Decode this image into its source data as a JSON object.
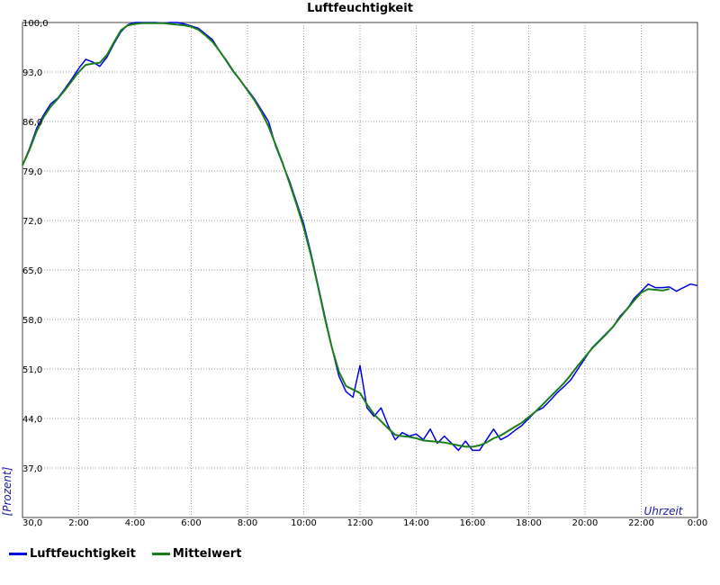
{
  "colors": {
    "series_raw": "#0000e6",
    "series_mean": "#1a7f1a",
    "grid": "#999999",
    "axis_label": "#1a1aaa"
  },
  "chart_data": {
    "type": "line",
    "title": "Luftfeuchtigkeit",
    "xlabel": "Uhrzeit",
    "ylabel": "[Prozent]",
    "xlim": [
      0,
      24
    ],
    "ylim": [
      30,
      100
    ],
    "x_ticks": [
      0,
      2,
      4,
      6,
      8,
      10,
      12,
      14,
      16,
      18,
      20,
      22,
      24
    ],
    "x_tick_labels": [
      "",
      "2:00",
      "4:00",
      "6:00",
      "8:00",
      "10:00",
      "12:00",
      "14:00",
      "16:00",
      "18:00",
      "20:00",
      "22:00",
      "0:00"
    ],
    "y_ticks": [
      30,
      37,
      44,
      51,
      58,
      65,
      72,
      79,
      86,
      93,
      100
    ],
    "y_tick_labels": [
      "30,0",
      "37,0",
      "44,0",
      "51,0",
      "58,0",
      "65,0",
      "72,0",
      "79,0",
      "86,0",
      "93,0",
      "100,0"
    ],
    "grid": true,
    "legend_position": "bottom-left",
    "series": [
      {
        "name": "Luftfeuchtigkeit",
        "x": [
          0,
          0.25,
          0.5,
          0.75,
          1,
          1.25,
          1.5,
          1.75,
          2,
          2.25,
          2.5,
          2.75,
          3,
          3.25,
          3.5,
          3.75,
          4,
          4.25,
          4.5,
          4.75,
          5,
          5.25,
          5.5,
          5.75,
          6,
          6.25,
          6.5,
          6.75,
          7,
          7.25,
          7.5,
          7.75,
          8,
          8.25,
          8.5,
          8.75,
          9,
          9.25,
          9.5,
          9.75,
          10,
          10.25,
          10.5,
          10.75,
          11,
          11.25,
          11.5,
          11.75,
          12,
          12.25,
          12.5,
          12.75,
          13,
          13.25,
          13.5,
          13.75,
          14,
          14.25,
          14.5,
          14.75,
          15,
          15.25,
          15.5,
          15.75,
          16,
          16.25,
          16.5,
          16.75,
          17,
          17.25,
          17.5,
          17.75,
          18,
          18.25,
          18.5,
          18.75,
          19,
          19.25,
          19.5,
          19.75,
          20,
          20.25,
          20.5,
          20.75,
          21,
          21.25,
          21.5,
          21.75,
          22,
          22.25,
          22.5,
          22.75,
          23,
          23.25,
          23.5,
          23.75,
          24
        ],
        "values": [
          79.8,
          82.2,
          85.0,
          86.9,
          88.5,
          89.3,
          90.6,
          92.0,
          93.5,
          94.8,
          94.4,
          93.8,
          95.1,
          97.0,
          98.7,
          99.7,
          100.0,
          100.0,
          100.0,
          100.0,
          99.9,
          100.0,
          100.0,
          99.8,
          99.5,
          99.2,
          98.4,
          97.6,
          96.0,
          94.5,
          93.0,
          91.8,
          90.5,
          89.2,
          87.6,
          86.0,
          82.5,
          80.0,
          77.5,
          74.5,
          71.5,
          67.5,
          63.0,
          58.5,
          54.0,
          50.0,
          47.8,
          47.0,
          51.5,
          45.5,
          44.3,
          45.5,
          43.0,
          41.0,
          42.0,
          41.5,
          41.8,
          41.0,
          42.5,
          40.5,
          41.5,
          40.5,
          39.5,
          40.8,
          39.5,
          39.5,
          41.0,
          42.5,
          41.0,
          41.5,
          42.3,
          43.0,
          44.0,
          45.0,
          45.5,
          46.5,
          47.6,
          48.5,
          49.5,
          51.0,
          52.5,
          54.0,
          55.0,
          56.0,
          57.0,
          58.5,
          59.5,
          61.0,
          62.0,
          63.0,
          62.5,
          62.5,
          62.6,
          62.0,
          62.5,
          63.0,
          62.8
        ],
        "color": "#0000e6"
      },
      {
        "name": "Mittelwert",
        "x": [
          0,
          0.25,
          0.5,
          0.75,
          1,
          1.25,
          1.5,
          1.75,
          2,
          2.25,
          2.5,
          2.75,
          3,
          3.25,
          3.5,
          3.75,
          4,
          4.25,
          4.5,
          4.75,
          5,
          5.25,
          5.5,
          5.75,
          6,
          6.25,
          6.5,
          6.75,
          7,
          7.25,
          7.5,
          7.75,
          8,
          8.25,
          8.5,
          8.75,
          9,
          9.25,
          9.5,
          9.75,
          10,
          10.25,
          10.5,
          10.75,
          11,
          11.25,
          11.5,
          11.75,
          12,
          12.25,
          12.5,
          12.75,
          13,
          13.25,
          13.5,
          13.75,
          14,
          14.25,
          14.5,
          14.75,
          15,
          15.25,
          15.5,
          15.75,
          16,
          16.25,
          16.5,
          16.75,
          17,
          17.25,
          17.5,
          17.75,
          18,
          18.25,
          18.5,
          18.75,
          19,
          19.25,
          19.5,
          19.75,
          20,
          20.25,
          20.5,
          20.75,
          21,
          21.25,
          21.5,
          21.75,
          22,
          22.25,
          22.5,
          22.75,
          23
        ],
        "values": [
          79.8,
          82.0,
          84.6,
          86.6,
          88.1,
          89.2,
          90.4,
          91.7,
          93.0,
          94.0,
          94.2,
          94.3,
          95.4,
          97.2,
          98.9,
          99.6,
          99.8,
          99.9,
          99.9,
          99.9,
          99.9,
          99.8,
          99.7,
          99.6,
          99.4,
          99.0,
          98.2,
          97.3,
          96.0,
          94.6,
          93.1,
          91.8,
          90.4,
          89.0,
          87.3,
          85.3,
          82.7,
          80.1,
          77.2,
          74.2,
          71.0,
          67.2,
          62.8,
          58.2,
          54.0,
          50.6,
          48.6,
          48.1,
          47.6,
          46.0,
          44.6,
          43.6,
          42.6,
          41.7,
          41.5,
          41.4,
          41.2,
          40.9,
          40.8,
          40.7,
          40.6,
          40.4,
          40.2,
          40.0,
          40.0,
          40.2,
          40.6,
          41.2,
          41.6,
          42.2,
          42.8,
          43.4,
          44.2,
          45.0,
          46.0,
          47.0,
          48.0,
          49.0,
          50.2,
          51.5,
          52.7,
          53.9,
          54.9,
          55.9,
          57.0,
          58.3,
          59.5,
          60.7,
          61.8,
          62.3,
          62.2,
          62.1,
          62.3
        ],
        "color": "#1a7f1a"
      }
    ]
  },
  "legend": [
    {
      "label": "Luftfeuchtigkeit"
    },
    {
      "label": "Mittelwert"
    }
  ]
}
